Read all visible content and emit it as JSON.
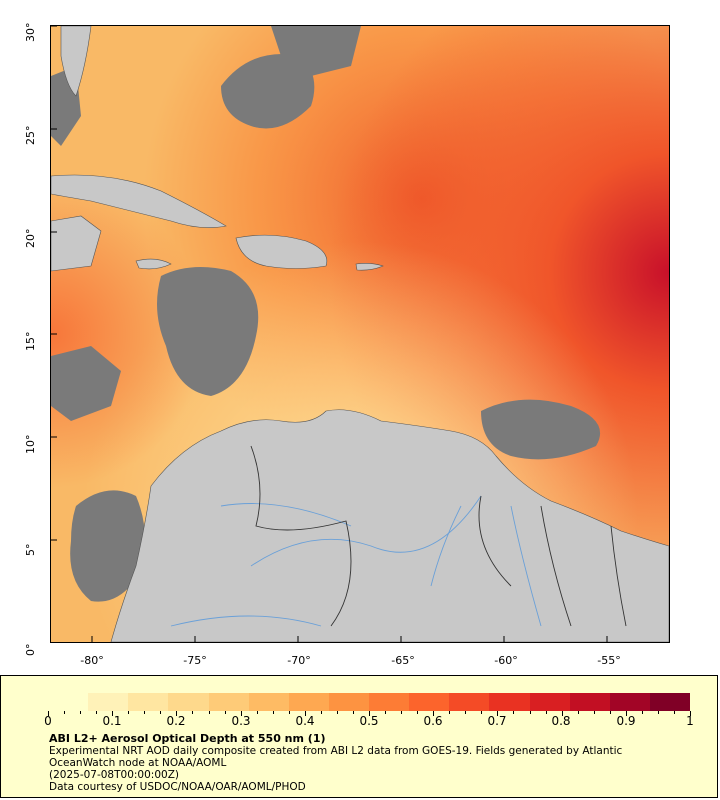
{
  "map": {
    "y_ticks": [
      "30°",
      "25°",
      "20°",
      "15°",
      "10°",
      "5°",
      "0°"
    ],
    "x_ticks": [
      "-80°",
      "-75°",
      "-70°",
      "-65°",
      "-60°",
      "-55°"
    ],
    "extent": {
      "lon_min": -82,
      "lon_max": -52,
      "lat_min": 0,
      "lat_max": 30
    }
  },
  "legend": {
    "colorbar_ticks": [
      "0",
      "0.1",
      "0.2",
      "0.3",
      "0.4",
      "0.5",
      "0.6",
      "0.7",
      "0.8",
      "0.9",
      "1"
    ],
    "title": "ABI L2+ Aerosol Optical Depth at 550 nm (1)",
    "line1": "Experimental NRT AOD daily composite created from ABI L2 data from GOES-19. Fields generated by Atlantic",
    "line2": "OceanWatch node at NOAA/AOML",
    "line3": "(2025-07-08T00:00:00Z)",
    "line4": "Data courtesy of USDOC/NOAA/OAR/AOML/PHOD"
  },
  "colors": {
    "land": "#c8c8c8",
    "no_data": "#7a7a7a",
    "river": "#6aa0d8",
    "colorbar": [
      "#ffffcc",
      "#fff2b8",
      "#ffe6a1",
      "#fed98c",
      "#fecb78",
      "#febb64",
      "#fea851",
      "#fd9341",
      "#fd7c35",
      "#fc642c",
      "#f44b26",
      "#e93222",
      "#d91f22",
      "#c20f23",
      "#a20526",
      "#800026"
    ]
  }
}
